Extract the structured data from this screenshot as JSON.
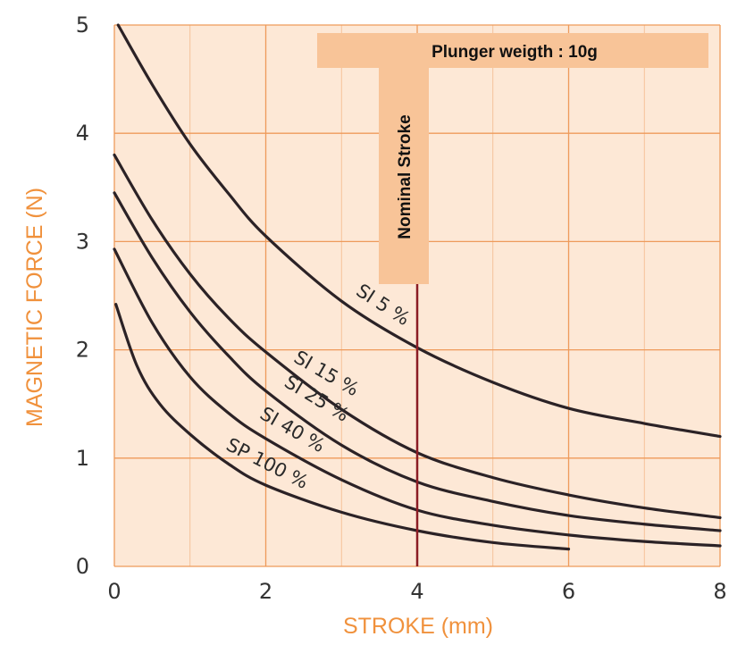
{
  "chart_data": {
    "type": "line",
    "title": "",
    "xlabel": "STROKE (mm)",
    "ylabel": "MAGNETIC FORCE (N)",
    "xlim": [
      0,
      8
    ],
    "ylim": [
      0,
      5
    ],
    "x_ticks": [
      0,
      2,
      4,
      6,
      8
    ],
    "y_ticks": [
      0,
      1,
      2,
      3,
      4,
      5
    ],
    "grid": true,
    "series": [
      {
        "name": "SI 5 %",
        "x": [
          0.05,
          0.5,
          1,
          1.5,
          2,
          3,
          4,
          5,
          6,
          7,
          8
        ],
        "y": [
          5.0,
          4.45,
          3.9,
          3.45,
          3.05,
          2.45,
          2.02,
          1.7,
          1.46,
          1.32,
          1.2
        ]
      },
      {
        "name": "SI 15 %",
        "x": [
          0,
          0.5,
          1,
          1.5,
          2,
          3,
          4,
          5,
          6,
          7,
          8
        ],
        "y": [
          3.8,
          3.2,
          2.7,
          2.3,
          1.98,
          1.45,
          1.05,
          0.82,
          0.66,
          0.54,
          0.45
        ]
      },
      {
        "name": "SI 25 %",
        "x": [
          0,
          0.5,
          1,
          1.5,
          2,
          3,
          4,
          5,
          6,
          7,
          8
        ],
        "y": [
          3.45,
          2.85,
          2.35,
          1.95,
          1.62,
          1.12,
          0.78,
          0.6,
          0.47,
          0.39,
          0.33
        ]
      },
      {
        "name": "SI 40 %",
        "x": [
          0,
          0.5,
          1,
          1.5,
          2,
          3,
          4,
          5,
          6,
          7,
          8
        ],
        "y": [
          2.93,
          2.25,
          1.75,
          1.42,
          1.18,
          0.8,
          0.52,
          0.38,
          0.29,
          0.23,
          0.19
        ]
      },
      {
        "name": "SP 100 %",
        "x": [
          0.02,
          0.3,
          0.6,
          1,
          1.5,
          2,
          3,
          4,
          5,
          6
        ],
        "y": [
          2.42,
          1.85,
          1.5,
          1.22,
          0.95,
          0.75,
          0.5,
          0.33,
          0.22,
          0.16
        ]
      }
    ],
    "annotations": {
      "banner": "Plunger weigth : 10g",
      "nominal_stroke_label": "Nominal Stroke",
      "nominal_stroke_x": 4
    }
  },
  "colors": {
    "plot_bg": "#fde8d6",
    "grid": "#ee9a5a",
    "curve": "#2b2226",
    "nominal_line": "#8b1c24",
    "label_box": "#f8c498",
    "axis_title": "#f0913c"
  }
}
